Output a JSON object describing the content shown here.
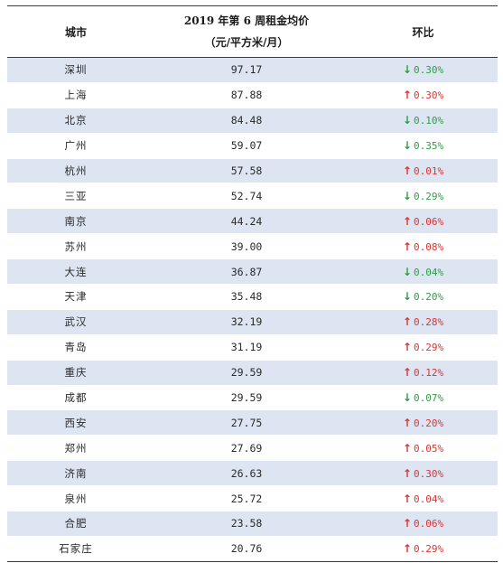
{
  "table": {
    "header": {
      "city": "城市",
      "price_line1": "2019 年第 6 周租金均价",
      "price_line2": "（元/平方米/月）",
      "mom": "环比"
    },
    "rows": [
      {
        "city": "深圳",
        "price": "97.17",
        "change": "0.30%",
        "direction": "down"
      },
      {
        "city": "上海",
        "price": "87.88",
        "change": "0.30%",
        "direction": "up"
      },
      {
        "city": "北京",
        "price": "84.48",
        "change": "0.10%",
        "direction": "down"
      },
      {
        "city": "广州",
        "price": "59.07",
        "change": "0.35%",
        "direction": "down"
      },
      {
        "city": "杭州",
        "price": "57.58",
        "change": "0.01%",
        "direction": "up"
      },
      {
        "city": "三亚",
        "price": "52.74",
        "change": "0.29%",
        "direction": "down"
      },
      {
        "city": "南京",
        "price": "44.24",
        "change": "0.06%",
        "direction": "up"
      },
      {
        "city": "苏州",
        "price": "39.00",
        "change": "0.08%",
        "direction": "up"
      },
      {
        "city": "大连",
        "price": "36.87",
        "change": "0.04%",
        "direction": "down"
      },
      {
        "city": "天津",
        "price": "35.48",
        "change": "0.20%",
        "direction": "down"
      },
      {
        "city": "武汉",
        "price": "32.19",
        "change": "0.28%",
        "direction": "up"
      },
      {
        "city": "青岛",
        "price": "31.19",
        "change": "0.29%",
        "direction": "up"
      },
      {
        "city": "重庆",
        "price": "29.59",
        "change": "0.12%",
        "direction": "up"
      },
      {
        "city": "成都",
        "price": "29.59",
        "change": "0.07%",
        "direction": "down"
      },
      {
        "city": "西安",
        "price": "27.75",
        "change": "0.20%",
        "direction": "up"
      },
      {
        "city": "郑州",
        "price": "27.69",
        "change": "0.05%",
        "direction": "up"
      },
      {
        "city": "济南",
        "price": "26.63",
        "change": "0.30%",
        "direction": "up"
      },
      {
        "city": "泉州",
        "price": "25.72",
        "change": "0.04%",
        "direction": "up"
      },
      {
        "city": "合肥",
        "price": "23.58",
        "change": "0.06%",
        "direction": "up"
      },
      {
        "city": "石家庄",
        "price": "20.76",
        "change": "0.29%",
        "direction": "up"
      }
    ]
  },
  "icons": {
    "up": "arrow-up-icon",
    "down": "arrow-down-icon"
  },
  "colors": {
    "up": "#e03131",
    "down": "#2e9e44",
    "row_shade": "#dde4f2"
  }
}
